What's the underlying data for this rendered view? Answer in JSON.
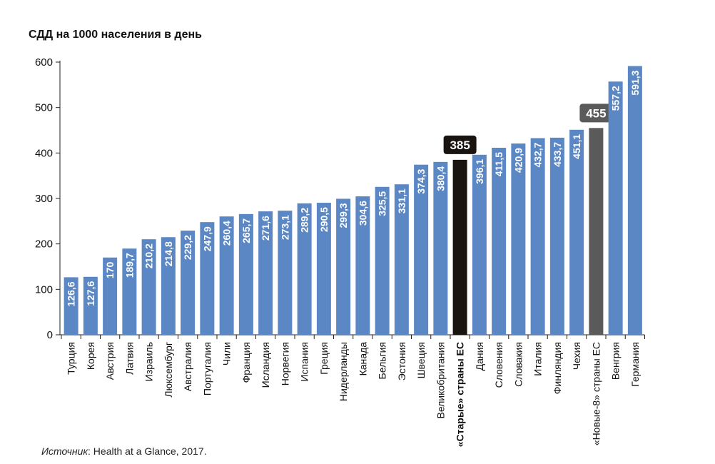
{
  "title": "СДД на 1000 населения в день",
  "source": {
    "label": "Источник",
    "text": ": Health at a Glance, 2017."
  },
  "chart_data": {
    "type": "bar",
    "title": "СДД на 1000 населения в день",
    "ylim": [
      0,
      600
    ],
    "yticks": [
      0,
      100,
      200,
      300,
      400,
      500,
      600
    ],
    "grid": false,
    "colors": {
      "default": "#5b87c5",
      "old_eu": "#1a1410",
      "new_eu": "#5a5a5a"
    },
    "bars": [
      {
        "category": "Турция",
        "value": 126.6,
        "label": "126,6"
      },
      {
        "category": "Корея",
        "value": 127.6,
        "label": "127,6"
      },
      {
        "category": "Австрия",
        "value": 170,
        "label": "170"
      },
      {
        "category": "Латвия",
        "value": 189.7,
        "label": "189,7"
      },
      {
        "category": "Израиль",
        "value": 210.2,
        "label": "210,2"
      },
      {
        "category": "Люксембург",
        "value": 214.8,
        "label": "214,8"
      },
      {
        "category": "Австралия",
        "value": 229.2,
        "label": "229,2"
      },
      {
        "category": "Португалия",
        "value": 247.9,
        "label": "247,9"
      },
      {
        "category": "Чили",
        "value": 260.4,
        "label": "260,4"
      },
      {
        "category": "Франция",
        "value": 265.7,
        "label": "265,7"
      },
      {
        "category": "Исландия",
        "value": 271.6,
        "label": "271,6"
      },
      {
        "category": "Норвегия",
        "value": 273.1,
        "label": "273,1"
      },
      {
        "category": "Испания",
        "value": 289.2,
        "label": "289,2"
      },
      {
        "category": "Греция",
        "value": 290.5,
        "label": "290,5"
      },
      {
        "category": "Нидерланды",
        "value": 299.3,
        "label": "299,3"
      },
      {
        "category": "Канада",
        "value": 304.6,
        "label": "304,6"
      },
      {
        "category": "Бельгия",
        "value": 325.5,
        "label": "325,5"
      },
      {
        "category": "Эстония",
        "value": 331.1,
        "label": "331,1"
      },
      {
        "category": "Швеция",
        "value": 374.3,
        "label": "374,3"
      },
      {
        "category": "Великобритания",
        "value": 380.4,
        "label": "380,4"
      },
      {
        "category": "«Старые» страны ЕС",
        "value": 385,
        "label": "385",
        "kind": "old_eu",
        "bold": true
      },
      {
        "category": "Дания",
        "value": 396.1,
        "label": "396,1"
      },
      {
        "category": "Словения",
        "value": 411.5,
        "label": "411,5"
      },
      {
        "category": "Словакия",
        "value": 420.9,
        "label": "420,9"
      },
      {
        "category": "Италия",
        "value": 432.7,
        "label": "432,7"
      },
      {
        "category": "Финляндия",
        "value": 433.7,
        "label": "433,7"
      },
      {
        "category": "Чехия",
        "value": 451.1,
        "label": "451,1"
      },
      {
        "category": "«Новые-8» страны ЕС",
        "value": 455,
        "label": "455",
        "kind": "new_eu"
      },
      {
        "category": "Венгрия",
        "value": 557.2,
        "label": "557,2"
      },
      {
        "category": "Германия",
        "value": 591.3,
        "label": "591,3"
      }
    ]
  }
}
